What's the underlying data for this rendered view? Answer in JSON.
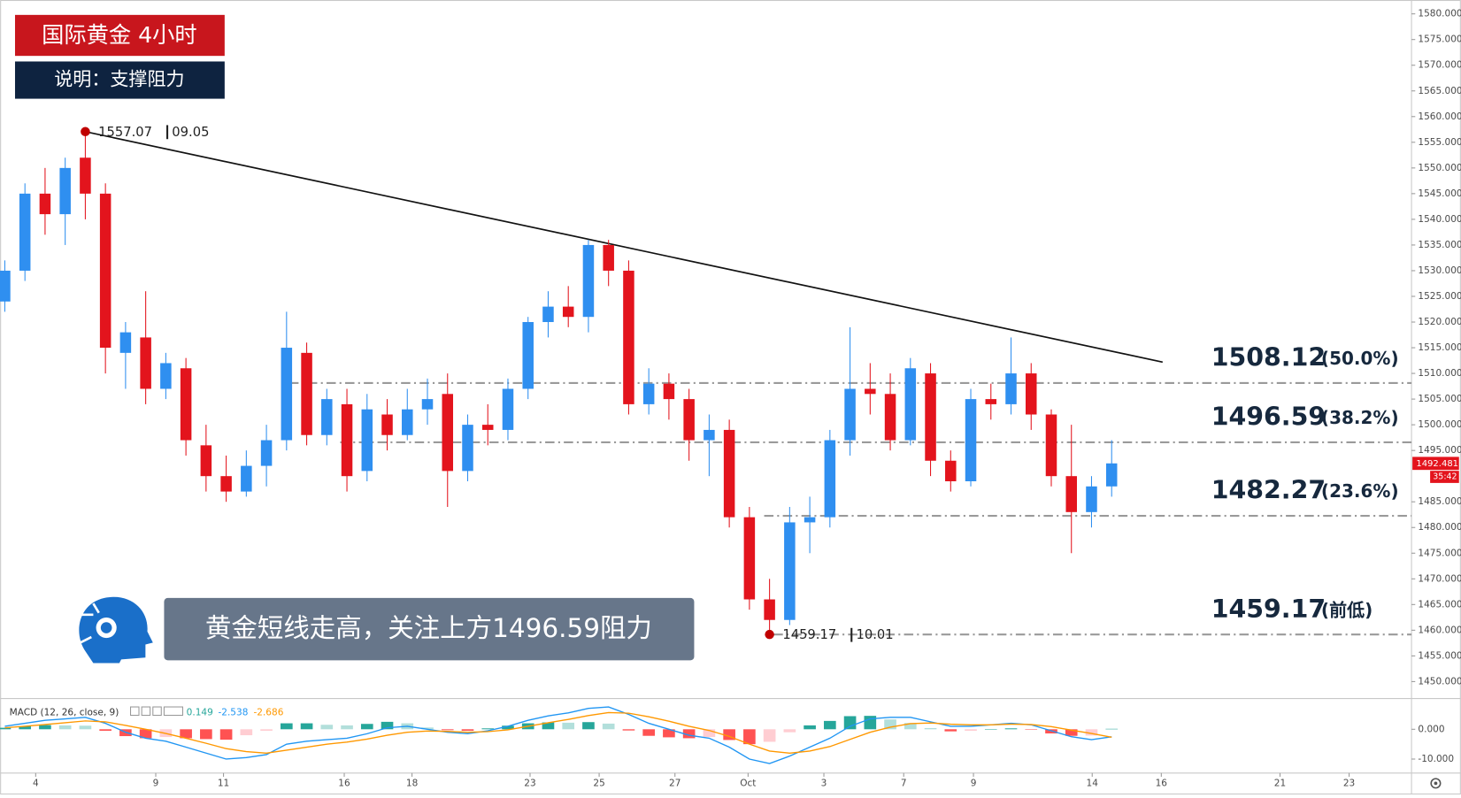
{
  "chart_data": {
    "type": "candlestick",
    "title": "国际黄金  4小时",
    "subtitle": "说明：支撑阻力",
    "caption": "黄金短线走高，关注上方1496.59阻力",
    "up_color": "#2f8ff0",
    "down_color": "#e3141d",
    "xlim": [
      -0.7,
      209.7
    ],
    "ylim": [
      1446.7,
      1582.7
    ],
    "xticks": [
      {
        "value": 4.6,
        "label": "4"
      },
      {
        "value": 22.5,
        "label": "9"
      },
      {
        "value": 32.6,
        "label": "11"
      },
      {
        "value": 50.6,
        "label": "16"
      },
      {
        "value": 60.7,
        "label": "18"
      },
      {
        "value": 78.3,
        "label": "23"
      },
      {
        "value": 88.6,
        "label": "25"
      },
      {
        "value": 99.9,
        "label": "27"
      },
      {
        "value": 110.8,
        "label": "Oct"
      },
      {
        "value": 122.1,
        "label": "3"
      },
      {
        "value": 134,
        "label": "7"
      },
      {
        "value": 144.4,
        "label": "9"
      },
      {
        "value": 162.1,
        "label": "14"
      },
      {
        "value": 172.4,
        "label": "16"
      },
      {
        "value": 190.1,
        "label": "21"
      },
      {
        "value": 200.4,
        "label": "23"
      }
    ],
    "yticks": [
      {
        "value": 1580,
        "label": "1580.000"
      },
      {
        "value": 1575,
        "label": "1575.000"
      },
      {
        "value": 1570,
        "label": "1570.000"
      },
      {
        "value": 1565,
        "label": "1565.000"
      },
      {
        "value": 1560,
        "label": "1560.000"
      },
      {
        "value": 1555,
        "label": "1555.000"
      },
      {
        "value": 1550,
        "label": "1550.000"
      },
      {
        "value": 1545,
        "label": "1545.000"
      },
      {
        "value": 1540,
        "label": "1540.000"
      },
      {
        "value": 1535,
        "label": "1535.000"
      },
      {
        "value": 1530,
        "label": "1530.000"
      },
      {
        "value": 1525,
        "label": "1525.000"
      },
      {
        "value": 1520,
        "label": "1520.000"
      },
      {
        "value": 1515,
        "label": "1515.000"
      },
      {
        "value": 1510,
        "label": "1510.000"
      },
      {
        "value": 1505,
        "label": "1505.000"
      },
      {
        "value": 1500,
        "label": "1500.000"
      },
      {
        "value": 1495,
        "label": "1495.000"
      },
      {
        "value": 1485,
        "label": "1485.000"
      },
      {
        "value": 1480,
        "label": "1480.000"
      },
      {
        "value": 1475,
        "label": "1475.000"
      },
      {
        "value": 1470,
        "label": "1470.000"
      },
      {
        "value": 1465,
        "label": "1465.000"
      },
      {
        "value": 1460,
        "label": "1460.000"
      },
      {
        "value": 1455,
        "label": "1455.000"
      },
      {
        "value": 1450,
        "label": "1450.000"
      }
    ],
    "x": [
      0,
      3,
      6,
      9,
      12,
      15,
      18,
      21,
      24,
      27,
      30,
      33,
      36,
      39,
      42,
      45,
      48,
      51,
      54,
      57,
      60,
      63,
      66,
      69,
      72,
      75,
      78,
      81,
      84,
      87,
      90,
      93,
      96,
      99,
      102,
      105,
      108,
      111,
      114,
      117,
      120,
      123,
      126,
      129,
      132,
      135,
      138,
      141,
      144,
      147,
      150,
      153,
      156,
      159,
      162,
      165
    ],
    "open": [
      1524,
      1530,
      1545,
      1541,
      1552,
      1545,
      1514,
      1517,
      1507,
      1511,
      1496,
      1490,
      1487,
      1492,
      1497,
      1514,
      1498,
      1504,
      1491,
      1502,
      1498,
      1503,
      1506,
      1491,
      1500,
      1499,
      1507,
      1520,
      1523,
      1521,
      1535,
      1530,
      1504,
      1508,
      1505,
      1497,
      1499,
      1482,
      1466,
      1462,
      1481,
      1482,
      1497,
      1507,
      1506,
      1497,
      1510,
      1493,
      1489,
      1505,
      1504,
      1510,
      1502,
      1490,
      1483,
      1488
    ],
    "high": [
      1532,
      1547,
      1550,
      1552,
      1557.07,
      1547,
      1520,
      1526,
      1514,
      1513,
      1500,
      1494,
      1495,
      1500,
      1522,
      1516,
      1507,
      1507,
      1506,
      1505,
      1507,
      1509,
      1510,
      1502,
      1504,
      1509,
      1521,
      1526,
      1527,
      1536,
      1536,
      1532,
      1511,
      1510,
      1507,
      1502,
      1501,
      1484,
      1470,
      1484,
      1486,
      1499,
      1519,
      1512,
      1510,
      1513,
      1512,
      1495,
      1507,
      1508,
      1517,
      1512,
      1503,
      1500,
      1490,
      1497
    ],
    "low": [
      1522,
      1528,
      1537,
      1535,
      1540,
      1510,
      1507,
      1504,
      1505,
      1494,
      1487,
      1485,
      1486,
      1488,
      1495,
      1496,
      1496,
      1487,
      1489,
      1495,
      1497,
      1500,
      1484,
      1489,
      1496,
      1497,
      1505,
      1517,
      1519,
      1518,
      1527,
      1502,
      1502,
      1501,
      1493,
      1490,
      1480,
      1464,
      1459.17,
      1461,
      1475,
      1480,
      1494,
      1502,
      1495,
      1496,
      1490,
      1487,
      1488,
      1501,
      1502,
      1499,
      1488,
      1475,
      1480,
      1486
    ],
    "close": [
      1530,
      1545,
      1541,
      1550,
      1545,
      1515,
      1518,
      1507,
      1512,
      1497,
      1490,
      1487,
      1492,
      1497,
      1515,
      1498,
      1505,
      1490,
      1503,
      1498,
      1503,
      1505,
      1491,
      1500,
      1499,
      1507,
      1520,
      1523,
      1521,
      1535,
      1530,
      1504,
      1508,
      1505,
      1497,
      1499,
      1482,
      1466,
      1462,
      1481,
      1482,
      1497,
      1507,
      1506,
      1497,
      1511,
      1493,
      1489,
      1505,
      1504,
      1510,
      1502,
      1490,
      1483,
      1488,
      1492.481
    ],
    "last_price": 1492.481,
    "countdown": "35:42",
    "trendline": {
      "color": "#111111",
      "x": [
        12,
        172.6
      ],
      "y": [
        1557.07,
        1512.2
      ]
    },
    "high_marker": {
      "x": 12,
      "value": 1557.07,
      "date": "09.05"
    },
    "low_marker": {
      "x": 114,
      "value": 1459.17,
      "date": "10.01"
    },
    "marker_color": "#c00000",
    "levels": [
      {
        "value": 1508.12,
        "label": "(50.0%)",
        "x_start": 42.4
      },
      {
        "value": 1496.59,
        "label": "(38.2%)",
        "x_start": 50
      },
      {
        "value": 1482.27,
        "label": "(23.6%)",
        "x_start": 113.2
      },
      {
        "value": 1459.17,
        "label": "(前低)",
        "x_start": 114.6
      }
    ],
    "macd": {
      "title": "MACD (12, 26, close, 9)",
      "ylim": [
        -14.69,
        9.69
      ],
      "yticks": [
        {
          "value": 0,
          "label": "0.000"
        },
        {
          "value": -10,
          "label": "-10.000"
        }
      ],
      "macd": {
        "color": "#2196f3",
        "values": [
          1,
          2,
          3,
          3.5,
          4,
          2,
          -1,
          -3,
          -4,
          -6,
          -8,
          -10,
          -9.5,
          -8.5,
          -5,
          -4,
          -3.5,
          -3,
          -1.5,
          0.5,
          1,
          0,
          -1,
          -1.5,
          -0.5,
          1,
          3,
          4.5,
          5.5,
          7,
          7.5,
          5,
          2,
          0,
          -2,
          -3,
          -6,
          -10,
          -11.5,
          -9,
          -6,
          -3,
          1,
          3.5,
          4,
          4,
          2.5,
          1,
          1,
          1.5,
          2,
          1.5,
          -0.5,
          -2.5,
          -3.5,
          -2.538
        ]
      },
      "signal": {
        "color": "#ff9800",
        "values": [
          0.5,
          1,
          1.6,
          2.2,
          2.8,
          2.5,
          1.3,
          0,
          -1.4,
          -3,
          -4.7,
          -6.5,
          -7.5,
          -8,
          -7,
          -6,
          -5,
          -4.3,
          -3.3,
          -2,
          -1,
          -0.6,
          -0.7,
          -1,
          -0.8,
          -0.2,
          1,
          2.2,
          3.3,
          4.6,
          5.6,
          5.4,
          4.2,
          2.7,
          1,
          -0.4,
          -2.4,
          -5,
          -7.3,
          -8,
          -7.3,
          -5.8,
          -3.4,
          -1,
          0.7,
          1.9,
          2.1,
          1.7,
          1.5,
          1.5,
          1.7,
          1.6,
          0.9,
          -0.3,
          -1.4,
          -2.686
        ]
      },
      "histogram": {
        "colors": [
          "#26a69a",
          "#b2dfdb",
          "#ff5252",
          "#ffcdd2"
        ],
        "values": [
          0.5,
          1,
          1.4,
          1.3,
          1.2,
          -0.5,
          -2.3,
          -3,
          -2.6,
          -3,
          -3.3,
          -3.5,
          -2,
          -0.5,
          2,
          2,
          1.5,
          1.3,
          1.8,
          2.5,
          2,
          0.6,
          -0.3,
          -0.5,
          0.3,
          1.2,
          2,
          2.3,
          2.2,
          2.4,
          1.9,
          -0.4,
          -2.2,
          -2.7,
          -3,
          -2.6,
          -3.6,
          -5,
          -4.2,
          -1,
          1.3,
          2.8,
          4.4,
          4.5,
          3.3,
          2.1,
          0.4,
          -0.7,
          -0.5,
          0,
          0.3,
          -0.1,
          -1.4,
          -2.2,
          -2.1,
          0.149
        ]
      }
    }
  }
}
